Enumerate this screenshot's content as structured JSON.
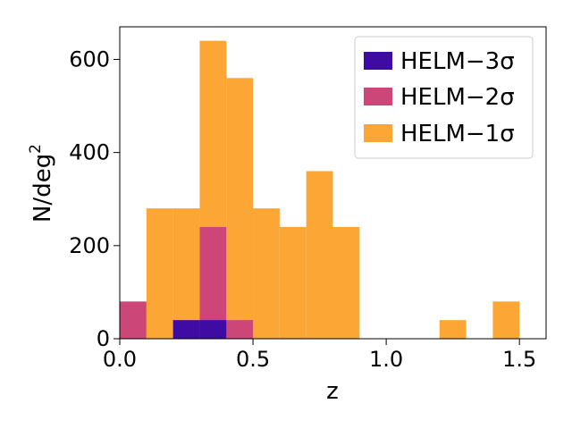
{
  "chart_data": {
    "type": "bar",
    "subtype": "stacked-overlay-histogram",
    "xlabel": "z",
    "ylabel": "N/deg",
    "ylabel_superscript": "2",
    "xlim": [
      0.0,
      1.6
    ],
    "ylim": [
      0,
      670
    ],
    "x_ticks": [
      0.0,
      0.5,
      1.0,
      1.5
    ],
    "x_tick_labels": [
      "0.0",
      "0.5",
      "1.0",
      "1.5"
    ],
    "y_ticks": [
      0,
      200,
      400,
      600
    ],
    "y_tick_labels": [
      "0",
      "200",
      "400",
      "600"
    ],
    "grid": false,
    "legend_position": "top-right",
    "bin_edges": [
      0.0,
      0.1,
      0.2,
      0.3,
      0.4,
      0.5,
      0.6,
      0.7,
      0.8,
      0.9,
      1.0,
      1.1,
      1.2,
      1.3,
      1.4,
      1.5
    ],
    "series": [
      {
        "name": "HELM−1σ",
        "color": "#fca636",
        "values": [
          0,
          280,
          280,
          640,
          560,
          280,
          240,
          360,
          240,
          0,
          0,
          0,
          40,
          0,
          80
        ]
      },
      {
        "name": "HELM−2σ",
        "color": "#cc4778",
        "values": [
          80,
          0,
          0,
          240,
          40,
          0,
          0,
          0,
          0,
          0,
          0,
          0,
          0,
          0,
          0
        ]
      },
      {
        "name": "HELM−3σ",
        "color": "#3f0ca3",
        "values": [
          0,
          0,
          40,
          40,
          0,
          0,
          0,
          0,
          0,
          0,
          0,
          0,
          0,
          0,
          0
        ]
      }
    ],
    "legend_entries": [
      "HELM−3σ",
      "HELM−2σ",
      "HELM−1σ"
    ]
  }
}
